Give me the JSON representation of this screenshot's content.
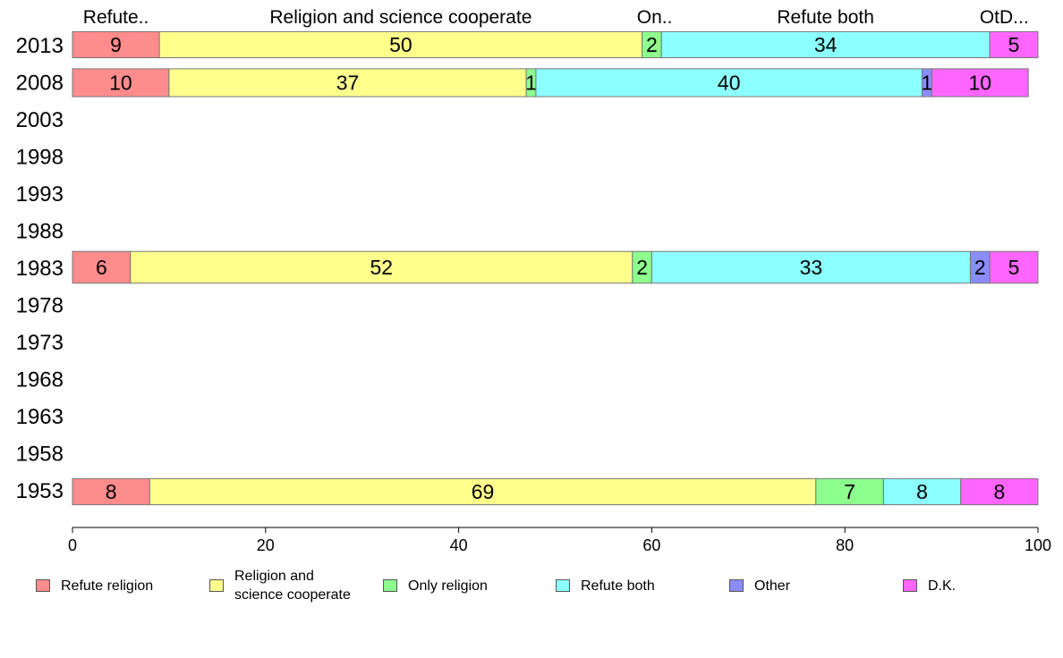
{
  "chart_data": {
    "type": "bar",
    "orientation": "horizontal-stacked",
    "categories": [
      "1953",
      "1958",
      "1963",
      "1968",
      "1973",
      "1978",
      "1983",
      "1988",
      "1993",
      "1998",
      "2003",
      "2008",
      "2013"
    ],
    "series": [
      {
        "name": "Refute religion",
        "color": "#ff8c8c",
        "values": [
          8,
          null,
          null,
          null,
          null,
          null,
          6,
          null,
          null,
          null,
          null,
          10,
          9
        ]
      },
      {
        "name": "Religion and science cooperate",
        "color": "#ffff8c",
        "values": [
          69,
          null,
          null,
          null,
          null,
          null,
          52,
          null,
          null,
          null,
          null,
          37,
          50
        ]
      },
      {
        "name": "Only religion",
        "color": "#8cff8c",
        "values": [
          7,
          null,
          null,
          null,
          null,
          null,
          2,
          null,
          null,
          null,
          null,
          1,
          2
        ]
      },
      {
        "name": "Refute both",
        "color": "#8cffff",
        "values": [
          8,
          null,
          null,
          null,
          null,
          null,
          33,
          null,
          null,
          null,
          null,
          40,
          34
        ]
      },
      {
        "name": "Other",
        "color": "#8c8cff",
        "values": [
          0,
          null,
          null,
          null,
          null,
          null,
          2,
          null,
          null,
          null,
          null,
          1,
          0
        ]
      },
      {
        "name": "D.K.",
        "color": "#ff66ff",
        "values": [
          8,
          null,
          null,
          null,
          null,
          null,
          5,
          null,
          null,
          null,
          null,
          10,
          5
        ]
      }
    ],
    "top_labels": [
      "Refute..",
      "Religion and science cooperate",
      "On..",
      "Refute both",
      "OtD..."
    ],
    "xlim": [
      0,
      100
    ],
    "xticks": [
      0,
      20,
      40,
      60,
      80,
      100
    ],
    "grid": false,
    "legend_position": "bottom"
  },
  "legend": {
    "items": [
      {
        "label": "Refute religion",
        "color": "#ff8c8c"
      },
      {
        "label": "Religion and\nscience cooperate",
        "color": "#ffff8c"
      },
      {
        "label": "Only religion",
        "color": "#8cff8c"
      },
      {
        "label": "Refute both",
        "color": "#8cffff"
      },
      {
        "label": "Other",
        "color": "#8c8cff"
      },
      {
        "label": "D.K.",
        "color": "#ff66ff"
      }
    ]
  }
}
